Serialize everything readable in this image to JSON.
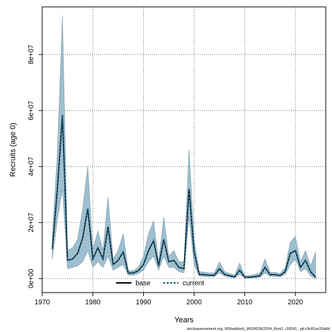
{
  "chart_data": {
    "type": "area",
    "xlabel": "Years",
    "ylabel": "Recruits (age 0)",
    "xlim": [
      1970,
      2026
    ],
    "ylim": [
      -5000000,
      97000000
    ],
    "x_ticks": [
      1970,
      1980,
      1990,
      2000,
      2010,
      2020
    ],
    "y_ticks": [
      0,
      20000000,
      40000000,
      60000000,
      80000000
    ],
    "y_tick_labels": [
      "0e+00",
      "2e+07",
      "4e+07",
      "6e+07",
      "8e+07"
    ],
    "grid": true,
    "legend": {
      "position": "bottom-center",
      "entries": [
        "base",
        "current"
      ]
    },
    "colors": {
      "band": "#9dbfcf",
      "band_edge": "#7a98a8",
      "base": "#000000",
      "current": "#1f5f7a"
    },
    "years": [
      1972,
      1973,
      1974,
      1975,
      1976,
      1977,
      1978,
      1979,
      1980,
      1981,
      1982,
      1983,
      1984,
      1985,
      1986,
      1987,
      1988,
      1989,
      1990,
      1991,
      1992,
      1993,
      1994,
      1995,
      1996,
      1997,
      1998,
      1999,
      2000,
      2001,
      2002,
      2003,
      2004,
      2005,
      2006,
      2007,
      2008,
      2009,
      2010,
      2011,
      2012,
      2013,
      2014,
      2015,
      2016,
      2017,
      2018,
      2019,
      2020,
      2021,
      2022,
      2023,
      2024
    ],
    "band_upper": [
      15000000,
      45000000,
      94000000,
      10000000,
      11000000,
      14000000,
      25000000,
      40000000,
      10500000,
      17000000,
      10000000,
      29000000,
      7000000,
      10000000,
      16000000,
      2800000,
      2800000,
      4000000,
      8000000,
      16000000,
      20500000,
      6000000,
      22000000,
      8000000,
      10000000,
      6000000,
      6000000,
      46000000,
      14000000,
      2500000,
      2300000,
      2000000,
      2000000,
      6000000,
      2500000,
      1800000,
      1200000,
      5500000,
      1000000,
      1000000,
      1500000,
      2000000,
      7000000,
      2200000,
      2200000,
      1800000,
      4000000,
      13000000,
      15000000,
      6000000,
      10000000,
      4500000,
      9500000
    ],
    "band_lower": [
      7000000,
      21000000,
      32000000,
      3500000,
      4000000,
      4500000,
      6000000,
      10000000,
      4000000,
      6000000,
      4000000,
      8000000,
      3000000,
      4000000,
      5000000,
      1200000,
      1200000,
      1800000,
      3000000,
      6000000,
      8000000,
      3000000,
      8000000,
      4000000,
      4000000,
      2500000,
      2000000,
      22000000,
      5000000,
      900000,
      800000,
      700000,
      700000,
      2000000,
      900000,
      500000,
      300000,
      1500000,
      200000,
      200000,
      300000,
      500000,
      2000000,
      800000,
      800000,
      600000,
      1500000,
      5000000,
      7000000,
      2500000,
      3500000,
      1000000,
      0
    ],
    "series": [
      {
        "name": "base",
        "values": [
          10500000,
          32000000,
          58500000,
          6500000,
          7000000,
          9000000,
          14500000,
          25000000,
          7000000,
          11000000,
          7000000,
          18500000,
          5000000,
          6500000,
          9500000,
          2000000,
          2000000,
          2800000,
          5000000,
          10000000,
          13500000,
          4500000,
          14000000,
          6000000,
          6500000,
          4000000,
          3500000,
          32000000,
          9500000,
          1500000,
          1400000,
          1200000,
          1200000,
          3500000,
          1500000,
          1000000,
          600000,
          3000000,
          500000,
          500000,
          700000,
          1000000,
          4000000,
          1400000,
          1400000,
          1100000,
          2500000,
          9000000,
          10000000,
          4000000,
          6500000,
          2500000,
          500000
        ]
      },
      {
        "name": "current",
        "values": [
          10500000,
          32000000,
          58500000,
          6500000,
          7000000,
          9000000,
          14500000,
          25000000,
          7000000,
          11000000,
          7000000,
          18500000,
          5000000,
          6500000,
          9500000,
          2000000,
          2000000,
          2800000,
          5000000,
          10000000,
          13500000,
          4500000,
          14000000,
          6000000,
          6500000,
          4000000,
          3500000,
          32000000,
          9500000,
          1500000,
          1400000,
          1200000,
          1200000,
          3500000,
          1500000,
          1000000,
          600000,
          3000000,
          500000,
          500000,
          700000,
          1000000,
          4000000,
          1400000,
          1400000,
          1100000,
          2500000,
          9000000,
          10000000,
          4000000,
          6500000,
          2500000,
          500000
        ]
      }
    ]
  },
  "footer_text": "stockassessment.org, NShaddock_WGNSSK2024_Run2, r18241 , git:c9c81ac53a0d"
}
